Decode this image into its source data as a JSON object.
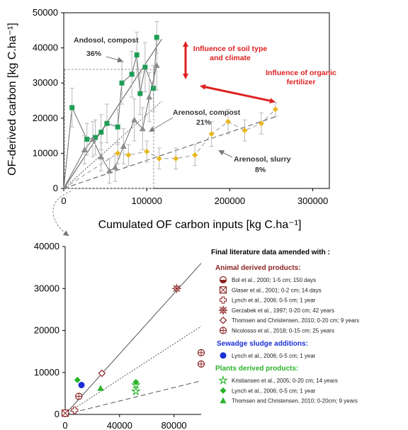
{
  "colors": {
    "green": "#1e9e55",
    "gray": "#8c8c8c",
    "yellow": "#e8b81c",
    "red": "#e02020",
    "animal_red": "#8b2323",
    "sludge_blue": "#1a2fd6",
    "plants_green": "#2ab32a",
    "errorbar": "#b8b8b8"
  },
  "chart_data": [
    {
      "type": "scatter",
      "title": "",
      "xlabel": "Cumulated OF carbon inputs [kg C.ha⁻¹]",
      "ylabel": "OF-derived carbon [kg C.ha⁻¹]",
      "xlim": [
        0,
        320000
      ],
      "ylim": [
        0,
        50000
      ],
      "xticks": [
        "0",
        "100000",
        "200000",
        "300000"
      ],
      "yticks": [
        "0",
        "10000",
        "20000",
        "30000",
        "40000",
        "50000"
      ],
      "series": [
        {
          "name": "Andosol, compost",
          "marker": "square",
          "color_key": "green",
          "x": [
            10000,
            28000,
            38000,
            45000,
            52000,
            65000,
            70000,
            82000,
            88000,
            92000,
            98000,
            108000,
            112000
          ],
          "y": [
            23000,
            14000,
            14500,
            16000,
            18500,
            17500,
            30000,
            32500,
            38000,
            27000,
            34500,
            28500,
            43000
          ],
          "err": [
            5500,
            4500,
            5000,
            5000,
            5500,
            5000,
            6000,
            6500,
            6500,
            6000,
            7000,
            6500,
            4500
          ],
          "fit_label": "36%",
          "fit_slope": 0.36
        },
        {
          "name": "Arenosol, compost",
          "marker": "triangle",
          "color_key": "gray",
          "x": [
            25000,
            35000,
            45000,
            55000,
            62000,
            72000,
            85000,
            95000,
            103000,
            112000
          ],
          "y": [
            11000,
            14000,
            9000,
            5000,
            6000,
            12000,
            19500,
            17000,
            26000,
            35000
          ],
          "err": [
            4000,
            5000,
            4000,
            3500,
            4000,
            5000,
            6000,
            6000,
            7000,
            7000
          ],
          "fit_label": "21%",
          "fit_slope": 0.21
        },
        {
          "name": "Arenosol, slurry",
          "marker": "diamond",
          "color_key": "yellow",
          "x": [
            65000,
            78000,
            100000,
            115000,
            135000,
            158000,
            178000,
            198000,
            218000,
            238000,
            255000
          ],
          "y": [
            10000,
            9500,
            10500,
            8500,
            8500,
            9500,
            15500,
            19000,
            16500,
            18500,
            22500
          ],
          "err": [
            3000,
            3000,
            3000,
            3000,
            3000,
            3000,
            3500,
            3500,
            3000,
            3000,
            2000
          ],
          "fit_label": "8%",
          "fit_slope": 0.08
        }
      ],
      "annotations": [
        "Influence of soil type and climate",
        "Influence of organic fertilizer"
      ]
    },
    {
      "type": "scatter",
      "title": "Final literature data amended with :",
      "xlim": [
        0,
        100000
      ],
      "ylim": [
        0,
        40000
      ],
      "xticks": [
        "0",
        "40000",
        "80000"
      ],
      "yticks": [
        "0",
        "10000",
        "20000",
        "30000",
        "40000"
      ],
      "reference_slopes": [
        0.36,
        0.21,
        0.08
      ],
      "groups": [
        {
          "label": "Animal derived products:",
          "color_key": "animal_red",
          "items": [
            {
              "label": "Bol et al., 2000; 1-5 cm; 150 days",
              "marker": "halfcircle",
              "points": [
                [
                  0,
                  300
                ]
              ]
            },
            {
              "label": "Glaser et al., 2001; 0-2 cm; 14 days",
              "marker": "boxx",
              "points": [
                [
                  0,
                  300
                ]
              ]
            },
            {
              "label": "Lynch et al., 2006; 0-5 cm; 1 year",
              "marker": "cross",
              "points": [
                [
                  7000,
                  1000
                ]
              ]
            },
            {
              "label": "Gerzabek et al., 1997; 0-20 cm; 42 years",
              "marker": "star",
              "points": [
                [
                  82000,
                  30000
                ]
              ]
            },
            {
              "label": "Thomsen and Christensen, 2010; 0-20 cm; 9 years",
              "marker": "diamond_open",
              "points": [
                [
                  27000,
                  9800
                ]
              ]
            },
            {
              "label": "Nicolosso et al., 2018; 0-15 cm; 25 years",
              "marker": "circleplus",
              "points": [
                [
                  10000,
                  4300
                ],
                [
                  100000,
                  12000
                ],
                [
                  100000,
                  14700
                ]
              ]
            }
          ]
        },
        {
          "label": "Sewadge sludge additions:",
          "color_key": "sludge_blue",
          "items": [
            {
              "label": "Lynch et al., 2006; 0-5 cm; 1 year",
              "marker": "circle_filled",
              "points": [
                [
                  12000,
                  7000
                ]
              ]
            }
          ]
        },
        {
          "label": "Plants derived products:",
          "color_key": "plants_green",
          "items": [
            {
              "label": "Kristiansen et al., 2005; 0-20 cm; 14 years",
              "marker": "star_open",
              "points": [
                [
                  52000,
                  5500
                ],
                [
                  52000,
                  7000
                ]
              ]
            },
            {
              "label": "Lynch et al., 2006; 0-5 cm; 1 year",
              "marker": "diamond_filled",
              "points": [
                [
                  9000,
                  8200
                ],
                [
                  52000,
                  7700
                ]
              ]
            },
            {
              "label": "Thomsen and Christensen, 2010; 0-20cm; 9 years",
              "marker": "triangle_filled",
              "points": [
                [
                  26000,
                  6200
                ]
              ]
            }
          ]
        }
      ]
    }
  ]
}
